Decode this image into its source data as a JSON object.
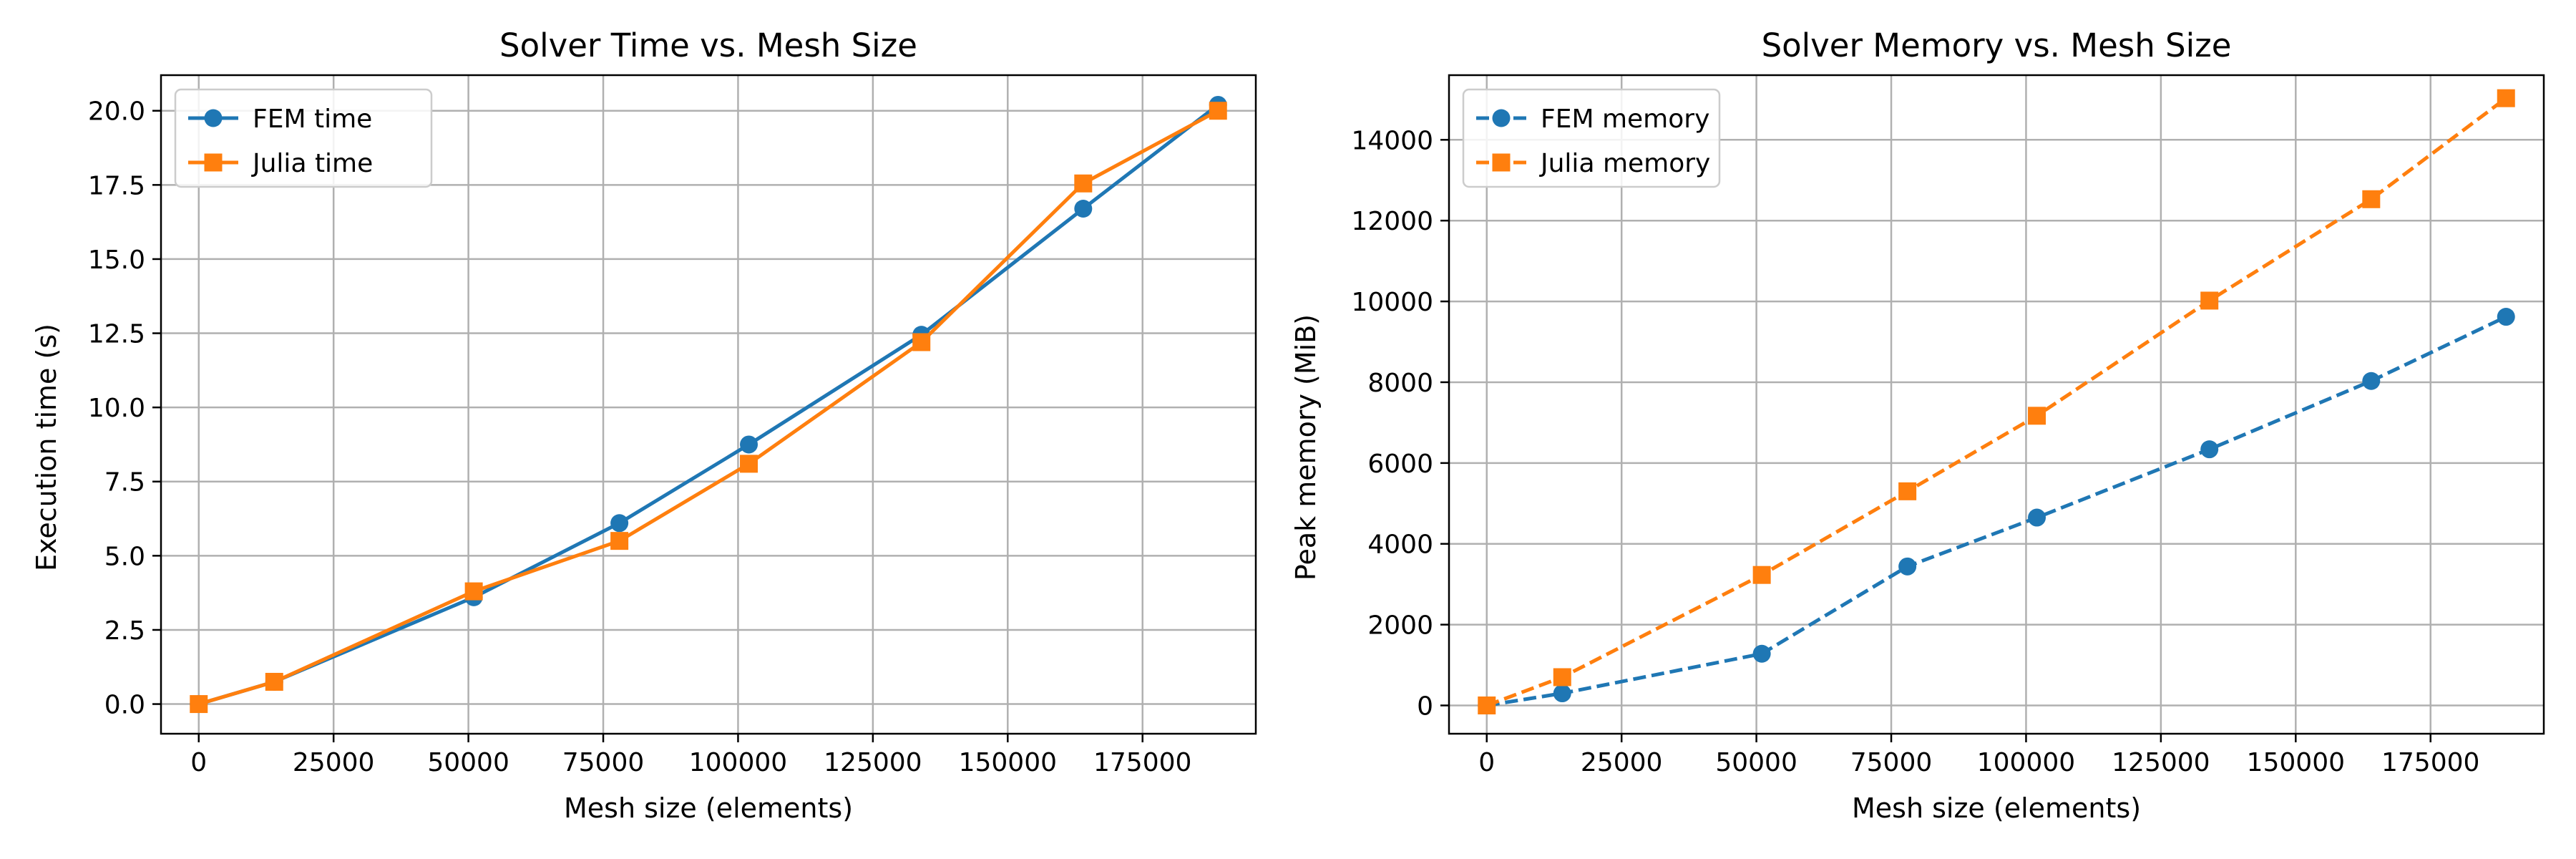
{
  "chart_data": [
    {
      "type": "line",
      "title": "Solver Time vs. Mesh Size",
      "xlabel": "Mesh size (elements)",
      "ylabel": "Execution time (s)",
      "xlim": [
        -7000,
        196000
      ],
      "ylim": [
        -1.0,
        21.2
      ],
      "xticks": [
        0,
        25000,
        50000,
        75000,
        100000,
        125000,
        150000,
        175000
      ],
      "xtick_labels": [
        "0",
        "25000",
        "50000",
        "75000",
        "100000",
        "125000",
        "150000",
        "175000"
      ],
      "yticks": [
        0,
        2.5,
        5,
        7.5,
        10,
        12.5,
        15,
        17.5,
        20
      ],
      "ytick_labels": [
        "0.0",
        "2.5",
        "5.0",
        "7.5",
        "10.0",
        "12.5",
        "15.0",
        "17.5",
        "20.0"
      ],
      "grid": true,
      "legend_position": "top-left",
      "series": [
        {
          "name": "FEM time",
          "color": "#1f77b4",
          "marker": "circle",
          "linestyle": "solid",
          "x": [
            0,
            14000,
            51000,
            78000,
            102000,
            134000,
            164000,
            189000
          ],
          "y": [
            0.0,
            0.75,
            3.6,
            6.1,
            8.75,
            12.45,
            16.7,
            20.2
          ]
        },
        {
          "name": "Julia time",
          "color": "#ff7f0e",
          "marker": "square",
          "linestyle": "solid",
          "x": [
            0,
            14000,
            51000,
            78000,
            102000,
            134000,
            164000,
            189000
          ],
          "y": [
            0.0,
            0.75,
            3.8,
            5.5,
            8.1,
            12.2,
            17.55,
            20.0
          ]
        }
      ]
    },
    {
      "type": "line",
      "title": "Solver Memory vs. Mesh Size",
      "xlabel": "Mesh size (elements)",
      "ylabel": "Peak memory (MiB)",
      "xlim": [
        -7000,
        196000
      ],
      "ylim": [
        -700,
        15600
      ],
      "xticks": [
        0,
        25000,
        50000,
        75000,
        100000,
        125000,
        150000,
        175000
      ],
      "xtick_labels": [
        "0",
        "25000",
        "50000",
        "75000",
        "100000",
        "125000",
        "150000",
        "175000"
      ],
      "yticks": [
        0,
        2000,
        4000,
        6000,
        8000,
        10000,
        12000,
        14000
      ],
      "ytick_labels": [
        "0",
        "2000",
        "4000",
        "6000",
        "8000",
        "10000",
        "12000",
        "14000"
      ],
      "grid": true,
      "legend_position": "top-left",
      "series": [
        {
          "name": "FEM memory",
          "color": "#1f77b4",
          "marker": "circle",
          "linestyle": "dashed",
          "x": [
            0,
            14000,
            51000,
            78000,
            102000,
            134000,
            164000,
            189000
          ],
          "y": [
            0,
            300,
            1280,
            3440,
            4650,
            6340,
            8030,
            9620
          ]
        },
        {
          "name": "Julia memory",
          "color": "#ff7f0e",
          "marker": "square",
          "linestyle": "dashed",
          "x": [
            0,
            14000,
            51000,
            78000,
            102000,
            134000,
            164000,
            189000
          ],
          "y": [
            0,
            700,
            3230,
            5300,
            7170,
            10020,
            12530,
            15030
          ]
        }
      ]
    }
  ]
}
